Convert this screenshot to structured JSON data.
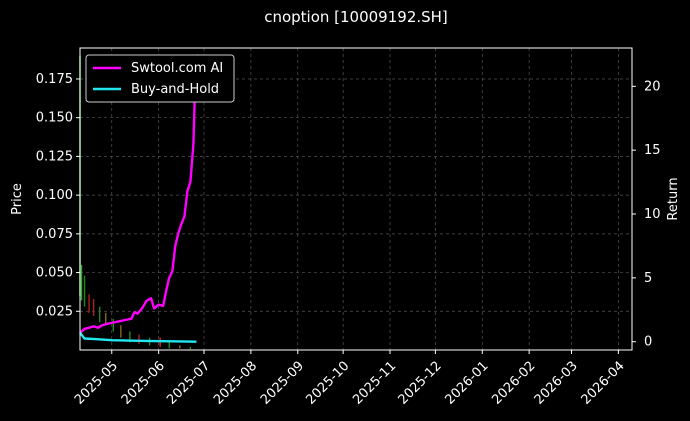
{
  "chart_data": {
    "type": "line",
    "title": "cnoption [10009192.SH]",
    "ylabel_left": "Price",
    "ylabel_right": "Return",
    "left_ylim": [
      0.0,
      0.195
    ],
    "right_ylim": [
      -0.65,
      23.0
    ],
    "x_range": [
      "2025-04-10",
      "2026-04-10"
    ],
    "left_yticks": [
      "0.025",
      "0.050",
      "0.075",
      "0.100",
      "0.125",
      "0.150",
      "0.175"
    ],
    "right_yticks": [
      "0",
      "5",
      "10",
      "15",
      "20"
    ],
    "xticks": [
      {
        "date": "2025-05-01",
        "label": "2025-05"
      },
      {
        "date": "2025-06-01",
        "label": "2025-06"
      },
      {
        "date": "2025-07-01",
        "label": "2025-07"
      },
      {
        "date": "2025-08-01",
        "label": "2025-08"
      },
      {
        "date": "2025-09-01",
        "label": "2025-09"
      },
      {
        "date": "2025-10-01",
        "label": "2025-10"
      },
      {
        "date": "2025-11-01",
        "label": "2025-11"
      },
      {
        "date": "2025-12-01",
        "label": "2025-12"
      },
      {
        "date": "2026-01-01",
        "label": "2026-01"
      },
      {
        "date": "2026-02-01",
        "label": "2026-02"
      },
      {
        "date": "2026-03-01",
        "label": "2026-03"
      },
      {
        "date": "2026-04-01",
        "label": "2026-04"
      }
    ],
    "grid": true,
    "legend_position": "top-left",
    "series": [
      {
        "name": "Swtool.com AI",
        "axis": "right",
        "color": "#ff00ff",
        "points": [
          [
            "2025-04-10",
            0.7
          ],
          [
            "2025-04-13",
            1.0
          ],
          [
            "2025-04-16",
            1.1
          ],
          [
            "2025-04-19",
            1.2
          ],
          [
            "2025-04-22",
            1.1
          ],
          [
            "2025-04-25",
            1.3
          ],
          [
            "2025-04-28",
            1.4
          ],
          [
            "2025-05-02",
            1.5
          ],
          [
            "2025-05-06",
            1.6
          ],
          [
            "2025-05-10",
            1.7
          ],
          [
            "2025-05-14",
            1.8
          ],
          [
            "2025-05-16",
            2.3
          ],
          [
            "2025-05-18",
            2.2
          ],
          [
            "2025-05-21",
            2.6
          ],
          [
            "2025-05-24",
            3.2
          ],
          [
            "2025-05-27",
            3.4
          ],
          [
            "2025-05-29",
            2.6
          ],
          [
            "2025-06-01",
            2.9
          ],
          [
            "2025-06-04",
            2.8
          ],
          [
            "2025-06-06",
            4.0
          ],
          [
            "2025-06-08",
            5.0
          ],
          [
            "2025-06-10",
            5.5
          ],
          [
            "2025-06-12",
            7.5
          ],
          [
            "2025-06-14",
            8.5
          ],
          [
            "2025-06-16",
            9.2
          ],
          [
            "2025-06-18",
            9.8
          ],
          [
            "2025-06-20",
            11.8
          ],
          [
            "2025-06-22",
            12.5
          ],
          [
            "2025-06-24",
            15.5
          ],
          [
            "2025-06-25",
            19.5
          ],
          [
            "2025-06-27",
            22.5
          ]
        ]
      },
      {
        "name": "Buy-and-Hold",
        "axis": "right",
        "color": "#22e6f0",
        "points": [
          [
            "2025-04-10",
            0.7
          ],
          [
            "2025-04-13",
            0.25
          ],
          [
            "2025-04-20",
            0.2
          ],
          [
            "2025-05-01",
            0.12
          ],
          [
            "2025-05-15",
            0.08
          ],
          [
            "2025-05-28",
            0.05
          ],
          [
            "2025-06-10",
            0.03
          ],
          [
            "2025-06-26",
            0.0
          ]
        ]
      }
    ],
    "candles": [
      {
        "date": "2025-04-10",
        "high": 0.19,
        "low": 0.035,
        "color": "#33ff33"
      },
      {
        "date": "2025-04-11",
        "high": 0.055,
        "low": 0.032,
        "color": "#33aa33"
      },
      {
        "date": "2025-04-13",
        "high": 0.048,
        "low": 0.028,
        "color": "#228822"
      },
      {
        "date": "2025-04-16",
        "high": 0.036,
        "low": 0.024,
        "color": "#aa2222"
      },
      {
        "date": "2025-04-19",
        "high": 0.033,
        "low": 0.022,
        "color": "#aa2222"
      },
      {
        "date": "2025-04-23",
        "high": 0.028,
        "low": 0.018,
        "color": "#228822"
      },
      {
        "date": "2025-04-27",
        "high": 0.024,
        "low": 0.016,
        "color": "#886622"
      },
      {
        "date": "2025-05-02",
        "high": 0.02,
        "low": 0.012,
        "color": "#228822"
      },
      {
        "date": "2025-05-07",
        "high": 0.016,
        "low": 0.008,
        "color": "#886622"
      },
      {
        "date": "2025-05-13",
        "high": 0.012,
        "low": 0.005,
        "color": "#228822"
      },
      {
        "date": "2025-05-19",
        "high": 0.01,
        "low": 0.004,
        "color": "#aa2222"
      },
      {
        "date": "2025-05-26",
        "high": 0.008,
        "low": 0.003,
        "color": "#228822"
      },
      {
        "date": "2025-06-02",
        "high": 0.008,
        "low": 0.002,
        "color": "#dd2222"
      },
      {
        "date": "2025-06-08",
        "high": 0.005,
        "low": 0.001,
        "color": "#228822"
      },
      {
        "date": "2025-06-15",
        "high": 0.003,
        "low": 0.001,
        "color": "#886622"
      },
      {
        "date": "2025-06-22",
        "high": 0.002,
        "low": 0.0005,
        "color": "#228822"
      }
    ]
  }
}
